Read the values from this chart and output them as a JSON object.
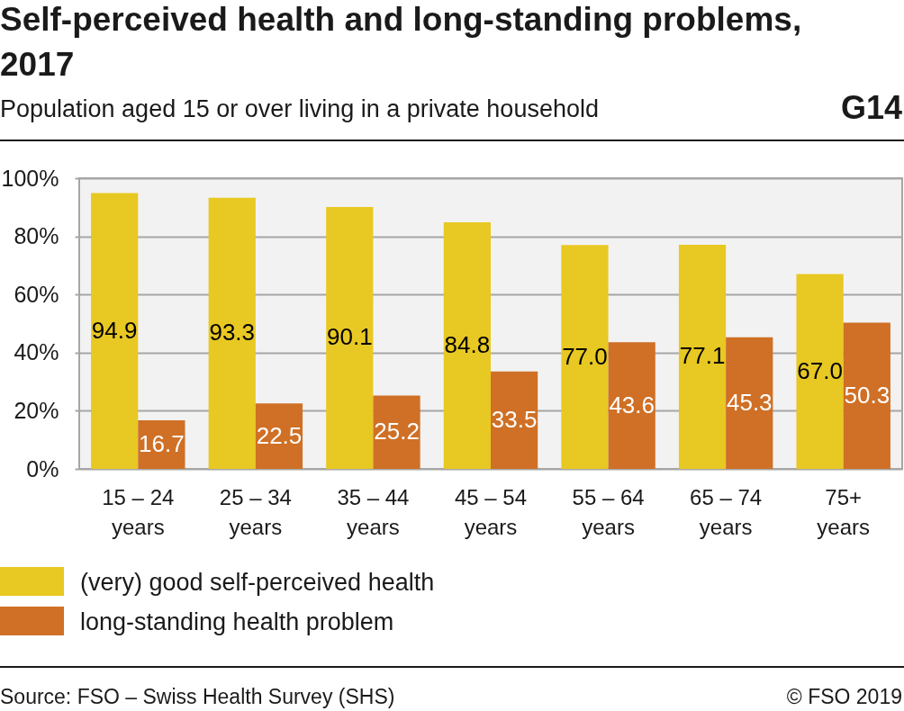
{
  "chart_data": {
    "type": "bar",
    "title": "Self-perceived health and long-standing problems, 2017",
    "subtitle": "Population aged 15 or over living in a private household",
    "categories": [
      "15 – 24 years",
      "25 – 34 years",
      "35 – 44 years",
      "45 – 54 years",
      "55 – 64 years",
      "65 – 74 years",
      "75+ years"
    ],
    "series": [
      {
        "name": "(very) good self-perceived health",
        "color": "#e8c822",
        "values": [
          94.9,
          93.3,
          90.1,
          84.8,
          77.0,
          77.1,
          67.0
        ],
        "value_labels": [
          "94.9",
          "93.3",
          "90.1",
          "84.8",
          "77.0",
          "77.1",
          "67.0"
        ]
      },
      {
        "name": "long-standing health problem",
        "color": "#cf7026",
        "values": [
          16.7,
          22.5,
          25.2,
          33.5,
          43.6,
          45.3,
          50.3
        ],
        "value_labels": [
          "16.7",
          "22.5",
          "25.2",
          "33.5",
          "43.6",
          "45.3",
          "50.3"
        ]
      }
    ],
    "ylim": [
      0,
      100
    ],
    "yticks": [
      {
        "value": 0,
        "label": "0%"
      },
      {
        "value": 20,
        "label": "20%"
      },
      {
        "value": 40,
        "label": "40%"
      },
      {
        "value": 60,
        "label": "60%"
      },
      {
        "value": 80,
        "label": "80%"
      },
      {
        "value": 100,
        "label": "100%"
      }
    ],
    "grid": "y",
    "legend": "bottom left",
    "annotations": [
      "G14",
      "Source: FSO – Swiss Health Survey (SHS)",
      "© FSO 2019"
    ]
  }
}
